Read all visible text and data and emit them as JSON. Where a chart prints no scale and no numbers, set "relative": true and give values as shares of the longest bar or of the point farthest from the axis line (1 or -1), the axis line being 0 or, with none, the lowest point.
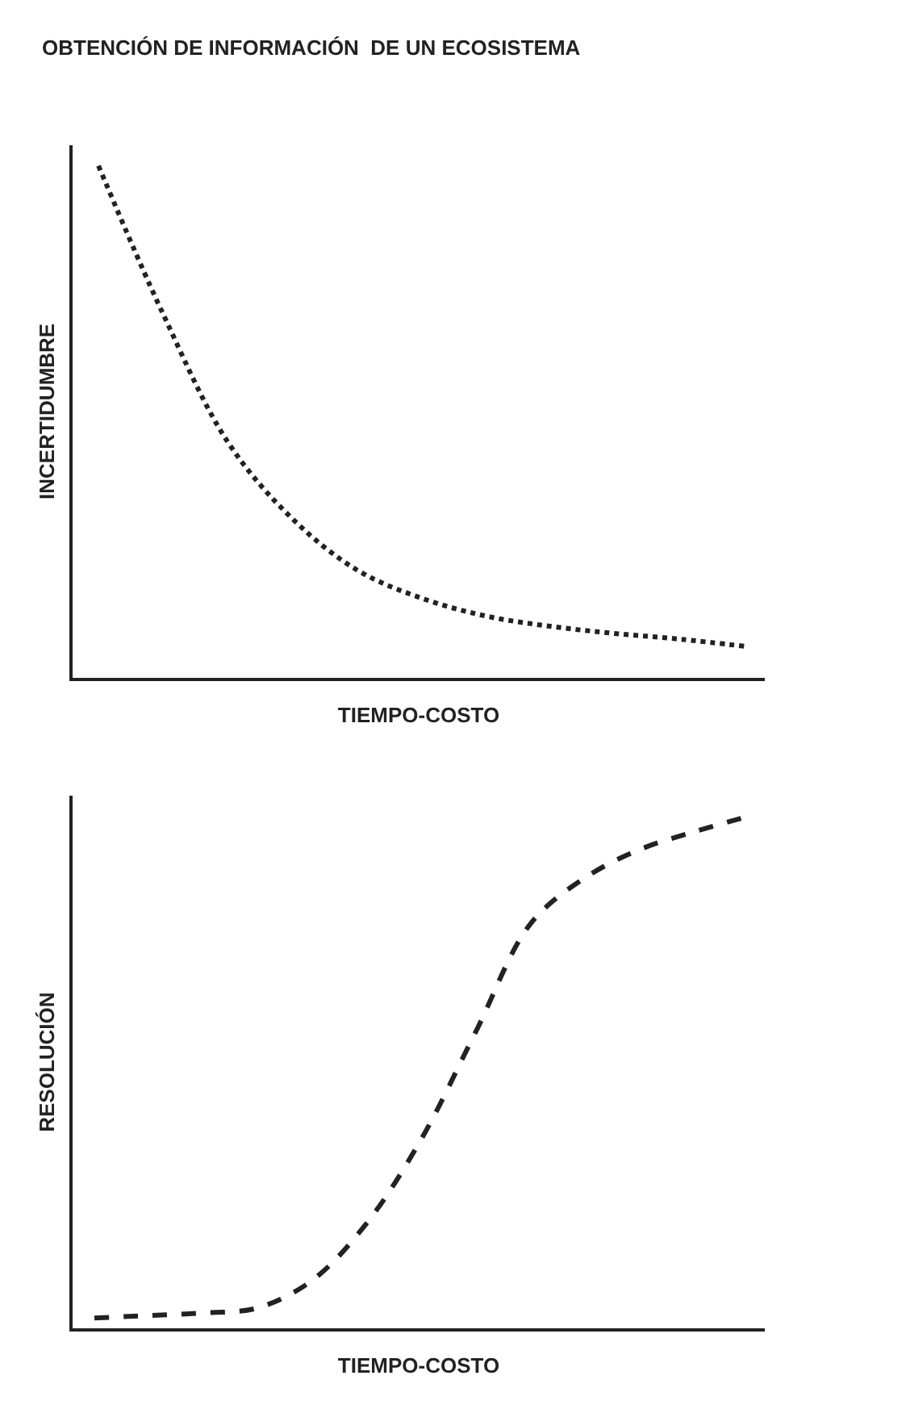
{
  "chart_data": [
    {
      "type": "line",
      "title": "OBTENCIÓN DE INFORMACIÓN  DE UN ECOSISTEMA",
      "xlabel": "TIEMPO-COSTO",
      "ylabel": "INCERTIDUMBRE",
      "relative": true,
      "line_style": "dotted",
      "color": "#222222",
      "categories": [
        null,
        null,
        null,
        null,
        null,
        null,
        null,
        null,
        null,
        null,
        null
      ],
      "values": [
        1.0,
        0.71,
        0.46,
        0.31,
        0.21,
        0.155,
        0.12,
        0.1,
        0.086,
        0.075,
        0.061
      ]
    },
    {
      "type": "line",
      "xlabel": "TIEMPO-COSTO",
      "ylabel": "RESOLUCIÓN",
      "relative": true,
      "line_style": "dashed",
      "color": "#222222",
      "categories": [
        null,
        null,
        null,
        null,
        null,
        null,
        null,
        null,
        null,
        null,
        null,
        null,
        null
      ],
      "values": [
        0.02,
        0.025,
        0.03,
        0.04,
        0.094,
        0.206,
        0.37,
        0.58,
        0.79,
        0.88,
        0.935,
        0.97,
        1.0
      ]
    }
  ]
}
